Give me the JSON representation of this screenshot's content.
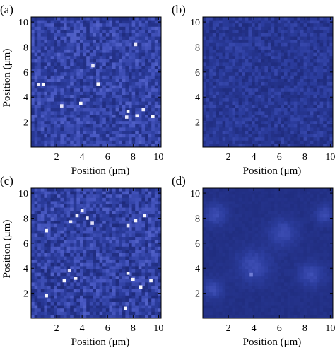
{
  "figure": {
    "colormap": [
      "#0c1440",
      "#1e2a7a",
      "#2c3d9e",
      "#4858c2",
      "#7f8cdc",
      "#c9c6f2",
      "#ffffff"
    ]
  },
  "chart_data": [
    {
      "panel": "(a)",
      "type": "heatmap",
      "xlabel": "Position (μm)",
      "ylabel": "Position (μm)",
      "xlim": [
        0,
        10.2
      ],
      "ylim": [
        0,
        10.4
      ],
      "xticks": [
        "2",
        "4",
        "6",
        "8",
        "10"
      ],
      "yticks": [
        "2",
        "4",
        "6",
        "8",
        "10"
      ],
      "grid_size": 40,
      "pattern": "uniform noise, mean level 0.36, few bright pixels",
      "bright_spots": [
        [
          0.6,
          5.0
        ],
        [
          0.95,
          5.0
        ],
        [
          5.25,
          5.05
        ],
        [
          4.85,
          6.5
        ],
        [
          7.5,
          2.4
        ],
        [
          7.6,
          2.85
        ],
        [
          8.3,
          2.5
        ],
        [
          8.8,
          3.0
        ],
        [
          9.55,
          2.45
        ],
        [
          3.9,
          3.5
        ],
        [
          2.4,
          3.3
        ],
        [
          8.2,
          8.2
        ]
      ]
    },
    {
      "panel": "(b)",
      "type": "heatmap",
      "xlabel": "Position (μm)",
      "ylabel": "",
      "xlim": [
        0,
        10.2
      ],
      "ylim": [
        0,
        10.4
      ],
      "xticks": [
        "2",
        "4",
        "6",
        "8",
        "10"
      ],
      "yticks": [
        "2",
        "4",
        "6",
        "8",
        "10"
      ],
      "grid_size": 40,
      "pattern": "uniform noise, mean level 0.29, no bright pixels",
      "bright_spots": []
    },
    {
      "panel": "(c)",
      "type": "heatmap",
      "xlabel": "Position (μm)",
      "ylabel": "Position (μm)",
      "xlim": [
        0,
        10.2
      ],
      "ylim": [
        0,
        10.4
      ],
      "xticks": [
        "2",
        "4",
        "6",
        "8",
        "10"
      ],
      "yticks": [
        "2",
        "4",
        "6",
        "8",
        "10"
      ],
      "grid_size": 40,
      "pattern": "noise with clusters of bright pixels",
      "bright_spots": [
        [
          4.0,
          8.6
        ],
        [
          3.6,
          8.2
        ],
        [
          4.4,
          8.0
        ],
        [
          3.1,
          7.7
        ],
        [
          1.2,
          7.0
        ],
        [
          4.8,
          7.6
        ],
        [
          7.6,
          7.4
        ],
        [
          8.2,
          7.8
        ],
        [
          8.9,
          8.2
        ],
        [
          3.0,
          3.8
        ],
        [
          3.5,
          3.2
        ],
        [
          2.6,
          3.0
        ],
        [
          7.6,
          3.6
        ],
        [
          8.0,
          3.1
        ],
        [
          8.6,
          2.5
        ],
        [
          9.4,
          3.0
        ],
        [
          1.2,
          1.8
        ],
        [
          7.4,
          0.8
        ]
      ]
    },
    {
      "panel": "(d)",
      "type": "heatmap",
      "xlabel": "Position (μm)",
      "ylabel": "",
      "xlim": [
        0,
        10.2
      ],
      "ylim": [
        0,
        10.4
      ],
      "xticks": [
        "2",
        "4",
        "6",
        "8",
        "10"
      ],
      "yticks": [
        "2",
        "4",
        "6",
        "8",
        "10"
      ],
      "grid_size": 40,
      "pattern": "smooth field with lighter circular domains",
      "bright_spots": [
        [
          3.8,
          3.5
        ]
      ],
      "blobs": [
        [
          1.0,
          8.3,
          0.9
        ],
        [
          4.0,
          4.2,
          1.3
        ],
        [
          6.3,
          6.8,
          1.1
        ],
        [
          8.5,
          3.5,
          1.0
        ],
        [
          9.5,
          8.3,
          0.7
        ],
        [
          0.8,
          2.3,
          0.8
        ]
      ]
    }
  ]
}
